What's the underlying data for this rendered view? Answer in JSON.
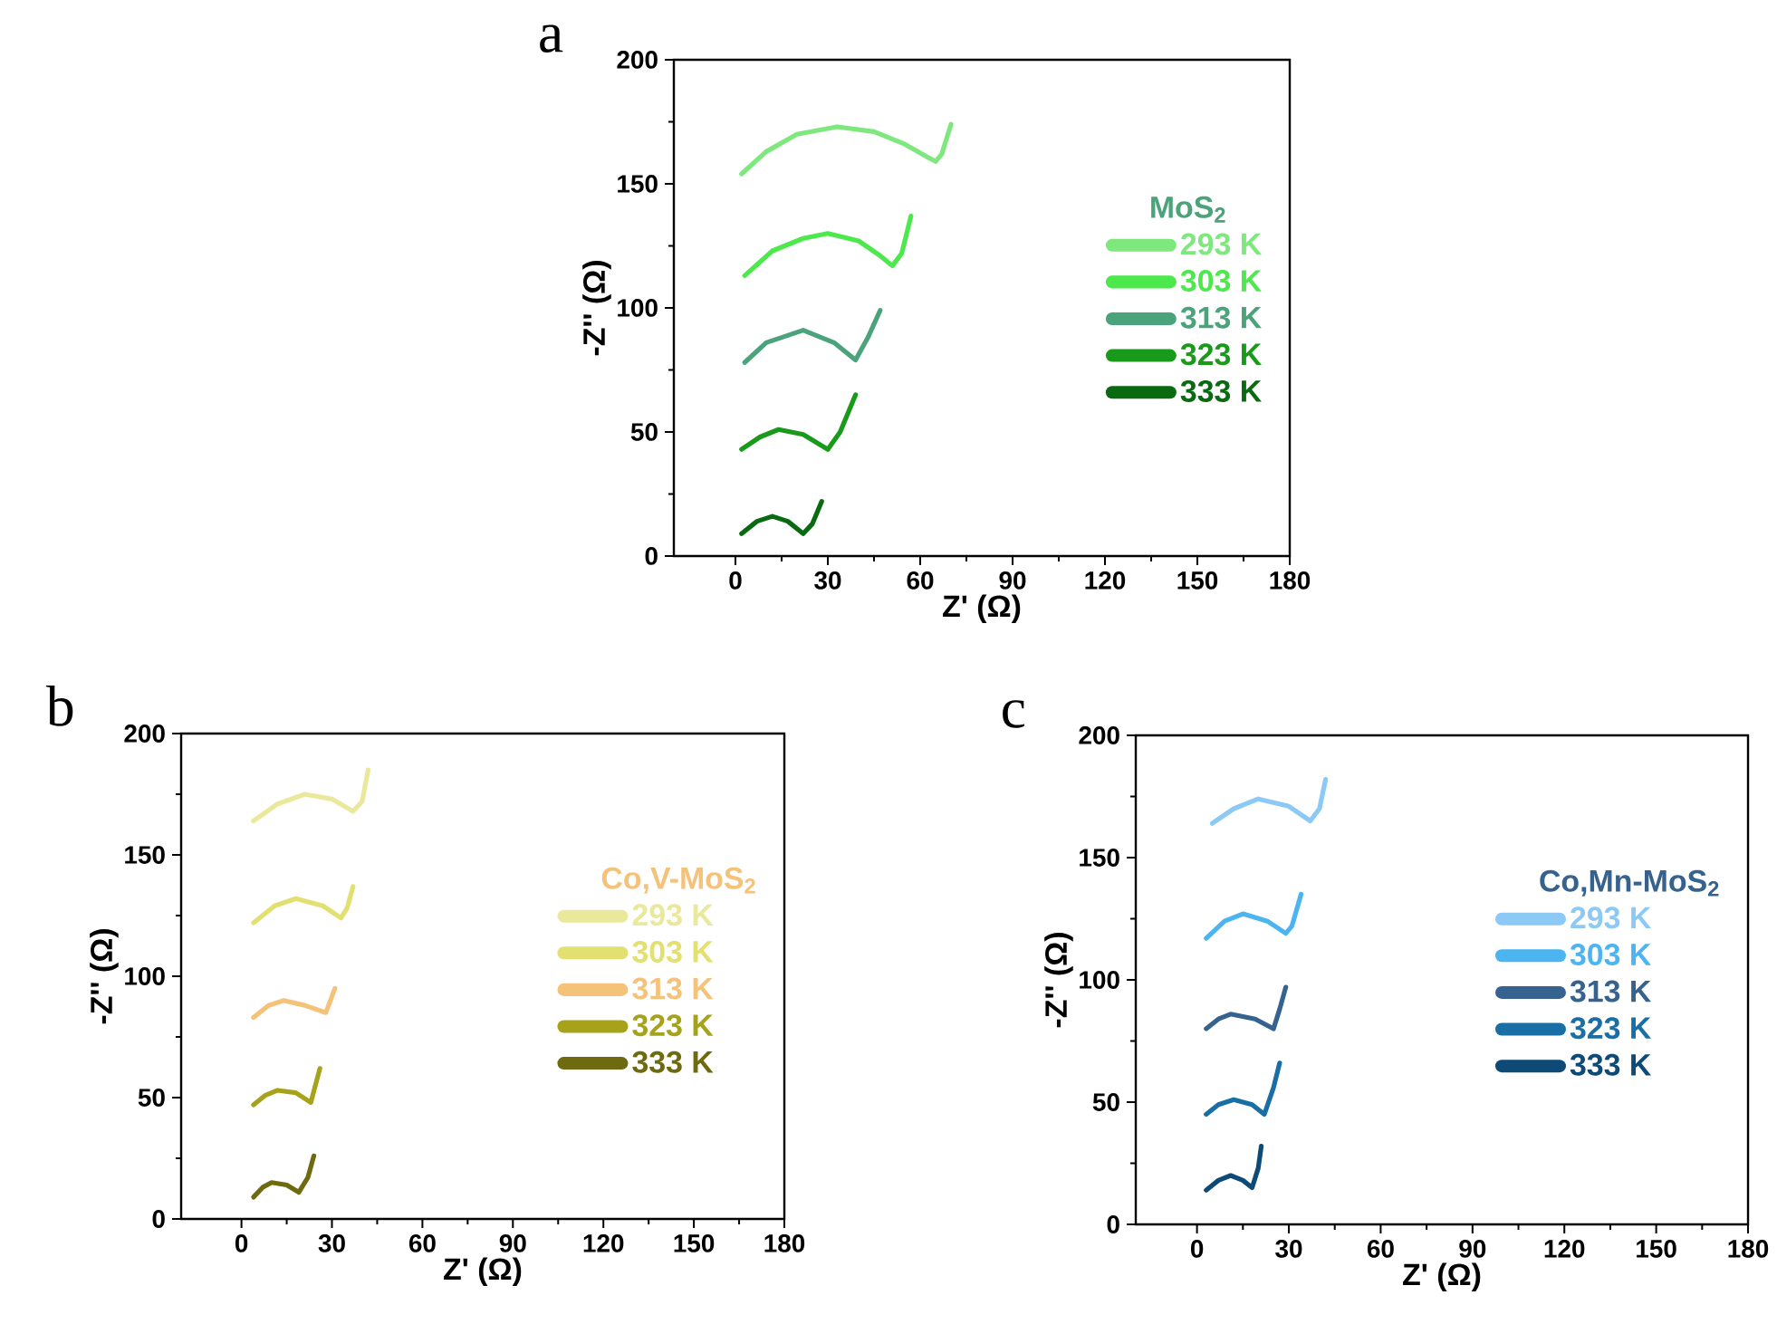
{
  "chart_data": [
    {
      "type": "line",
      "title": "a",
      "xlabel": "Z' (Ω)",
      "ylabel": "-Z'' (Ω)",
      "legend_title": "MoS$_{2}$",
      "legend": "right",
      "xlim": [
        -20,
        180
      ],
      "ylim": [
        0,
        200
      ],
      "xticks": [
        0,
        30,
        60,
        90,
        120,
        150,
        180
      ],
      "yticks": [
        0,
        50,
        100,
        150,
        200
      ],
      "series": [
        {
          "name": "293 K",
          "color": "#7ee87e",
          "x": [
            2,
            10,
            20,
            33,
            45,
            55,
            62,
            65,
            67,
            70
          ],
          "values": [
            154,
            163,
            170,
            173,
            171,
            166,
            161,
            159,
            162,
            174
          ]
        },
        {
          "name": "303 K",
          "color": "#4ce84c",
          "x": [
            3,
            12,
            22,
            30,
            40,
            47,
            51,
            54,
            57
          ],
          "values": [
            113,
            123,
            128,
            130,
            127,
            121,
            117,
            122,
            137
          ]
        },
        {
          "name": "313 K",
          "color": "#4aa37a",
          "x": [
            3,
            10,
            22,
            32,
            39,
            43,
            47
          ],
          "values": [
            78,
            86,
            91,
            86,
            79,
            88,
            99
          ]
        },
        {
          "name": "323 K",
          "color": "#1a9a1a",
          "x": [
            2,
            8,
            14,
            22,
            30,
            34,
            39
          ],
          "values": [
            43,
            48,
            51,
            49,
            43,
            50,
            65
          ]
        },
        {
          "name": "333 K",
          "color": "#0a6a12",
          "x": [
            2,
            7,
            12,
            17,
            22,
            25,
            28
          ],
          "values": [
            9,
            14,
            16,
            14,
            9,
            13,
            22
          ]
        }
      ]
    },
    {
      "type": "line",
      "title": "b",
      "xlabel": "Z' (Ω)",
      "ylabel": "-Z'' (Ω)",
      "legend_title": "Co,V-MoS$_{2}$",
      "legend": "right",
      "xlim": [
        -20,
        180
      ],
      "ylim": [
        0,
        200
      ],
      "xticks": [
        0,
        30,
        60,
        90,
        120,
        150,
        180
      ],
      "yticks": [
        0,
        50,
        100,
        150,
        200
      ],
      "series": [
        {
          "name": "293 K",
          "color": "#eae89a",
          "x": [
            4,
            12,
            21,
            30,
            37,
            40,
            42
          ],
          "values": [
            164,
            171,
            175,
            173,
            168,
            172,
            185
          ]
        },
        {
          "name": "303 K",
          "color": "#e2e070",
          "x": [
            4,
            11,
            18,
            27,
            33,
            35,
            37
          ],
          "values": [
            122,
            129,
            132,
            129,
            124,
            128,
            137
          ]
        },
        {
          "name": "313 K",
          "color": "#f5c27a",
          "x": [
            4,
            9,
            14,
            21,
            28,
            31
          ],
          "values": [
            83,
            88,
            90,
            88,
            85,
            95
          ]
        },
        {
          "name": "323 K",
          "color": "#a6a21a",
          "x": [
            4,
            8,
            12,
            18,
            23,
            26
          ],
          "values": [
            47,
            51,
            53,
            52,
            48,
            62
          ]
        },
        {
          "name": "333 K",
          "color": "#6e6a10",
          "x": [
            4,
            7,
            10,
            15,
            19,
            22,
            24
          ],
          "values": [
            9,
            13,
            15,
            14,
            11,
            17,
            26
          ]
        }
      ]
    },
    {
      "type": "line",
      "title": "c",
      "xlabel": "Z' (Ω)",
      "ylabel": "-Z'' (Ω)",
      "legend_title": "Co,Mn-MoS$_{2}$",
      "legend": "right",
      "xlim": [
        -20,
        180
      ],
      "ylim": [
        0,
        200
      ],
      "xticks": [
        0,
        30,
        60,
        90,
        120,
        150,
        180
      ],
      "yticks": [
        0,
        50,
        100,
        150,
        200
      ],
      "series": [
        {
          "name": "293 K",
          "color": "#8ccaf5",
          "x": [
            5,
            12,
            20,
            30,
            37,
            40,
            42
          ],
          "values": [
            164,
            170,
            174,
            171,
            165,
            170,
            182
          ]
        },
        {
          "name": "303 K",
          "color": "#4cb4f0",
          "x": [
            3,
            9,
            15,
            23,
            29,
            31,
            34
          ],
          "values": [
            117,
            124,
            127,
            124,
            119,
            122,
            135
          ]
        },
        {
          "name": "313 K",
          "color": "#35628e",
          "x": [
            3,
            7,
            11,
            19,
            25,
            27,
            29
          ],
          "values": [
            80,
            84,
            86,
            84,
            80,
            88,
            97
          ]
        },
        {
          "name": "323 K",
          "color": "#1a6ea6",
          "x": [
            3,
            7,
            12,
            18,
            22,
            25,
            27
          ],
          "values": [
            45,
            49,
            51,
            49,
            45,
            56,
            66
          ]
        },
        {
          "name": "333 K",
          "color": "#0e4a76",
          "x": [
            3,
            7,
            11,
            15,
            18,
            20,
            21
          ],
          "values": [
            14,
            18,
            20,
            18,
            15,
            23,
            32
          ]
        }
      ]
    }
  ]
}
